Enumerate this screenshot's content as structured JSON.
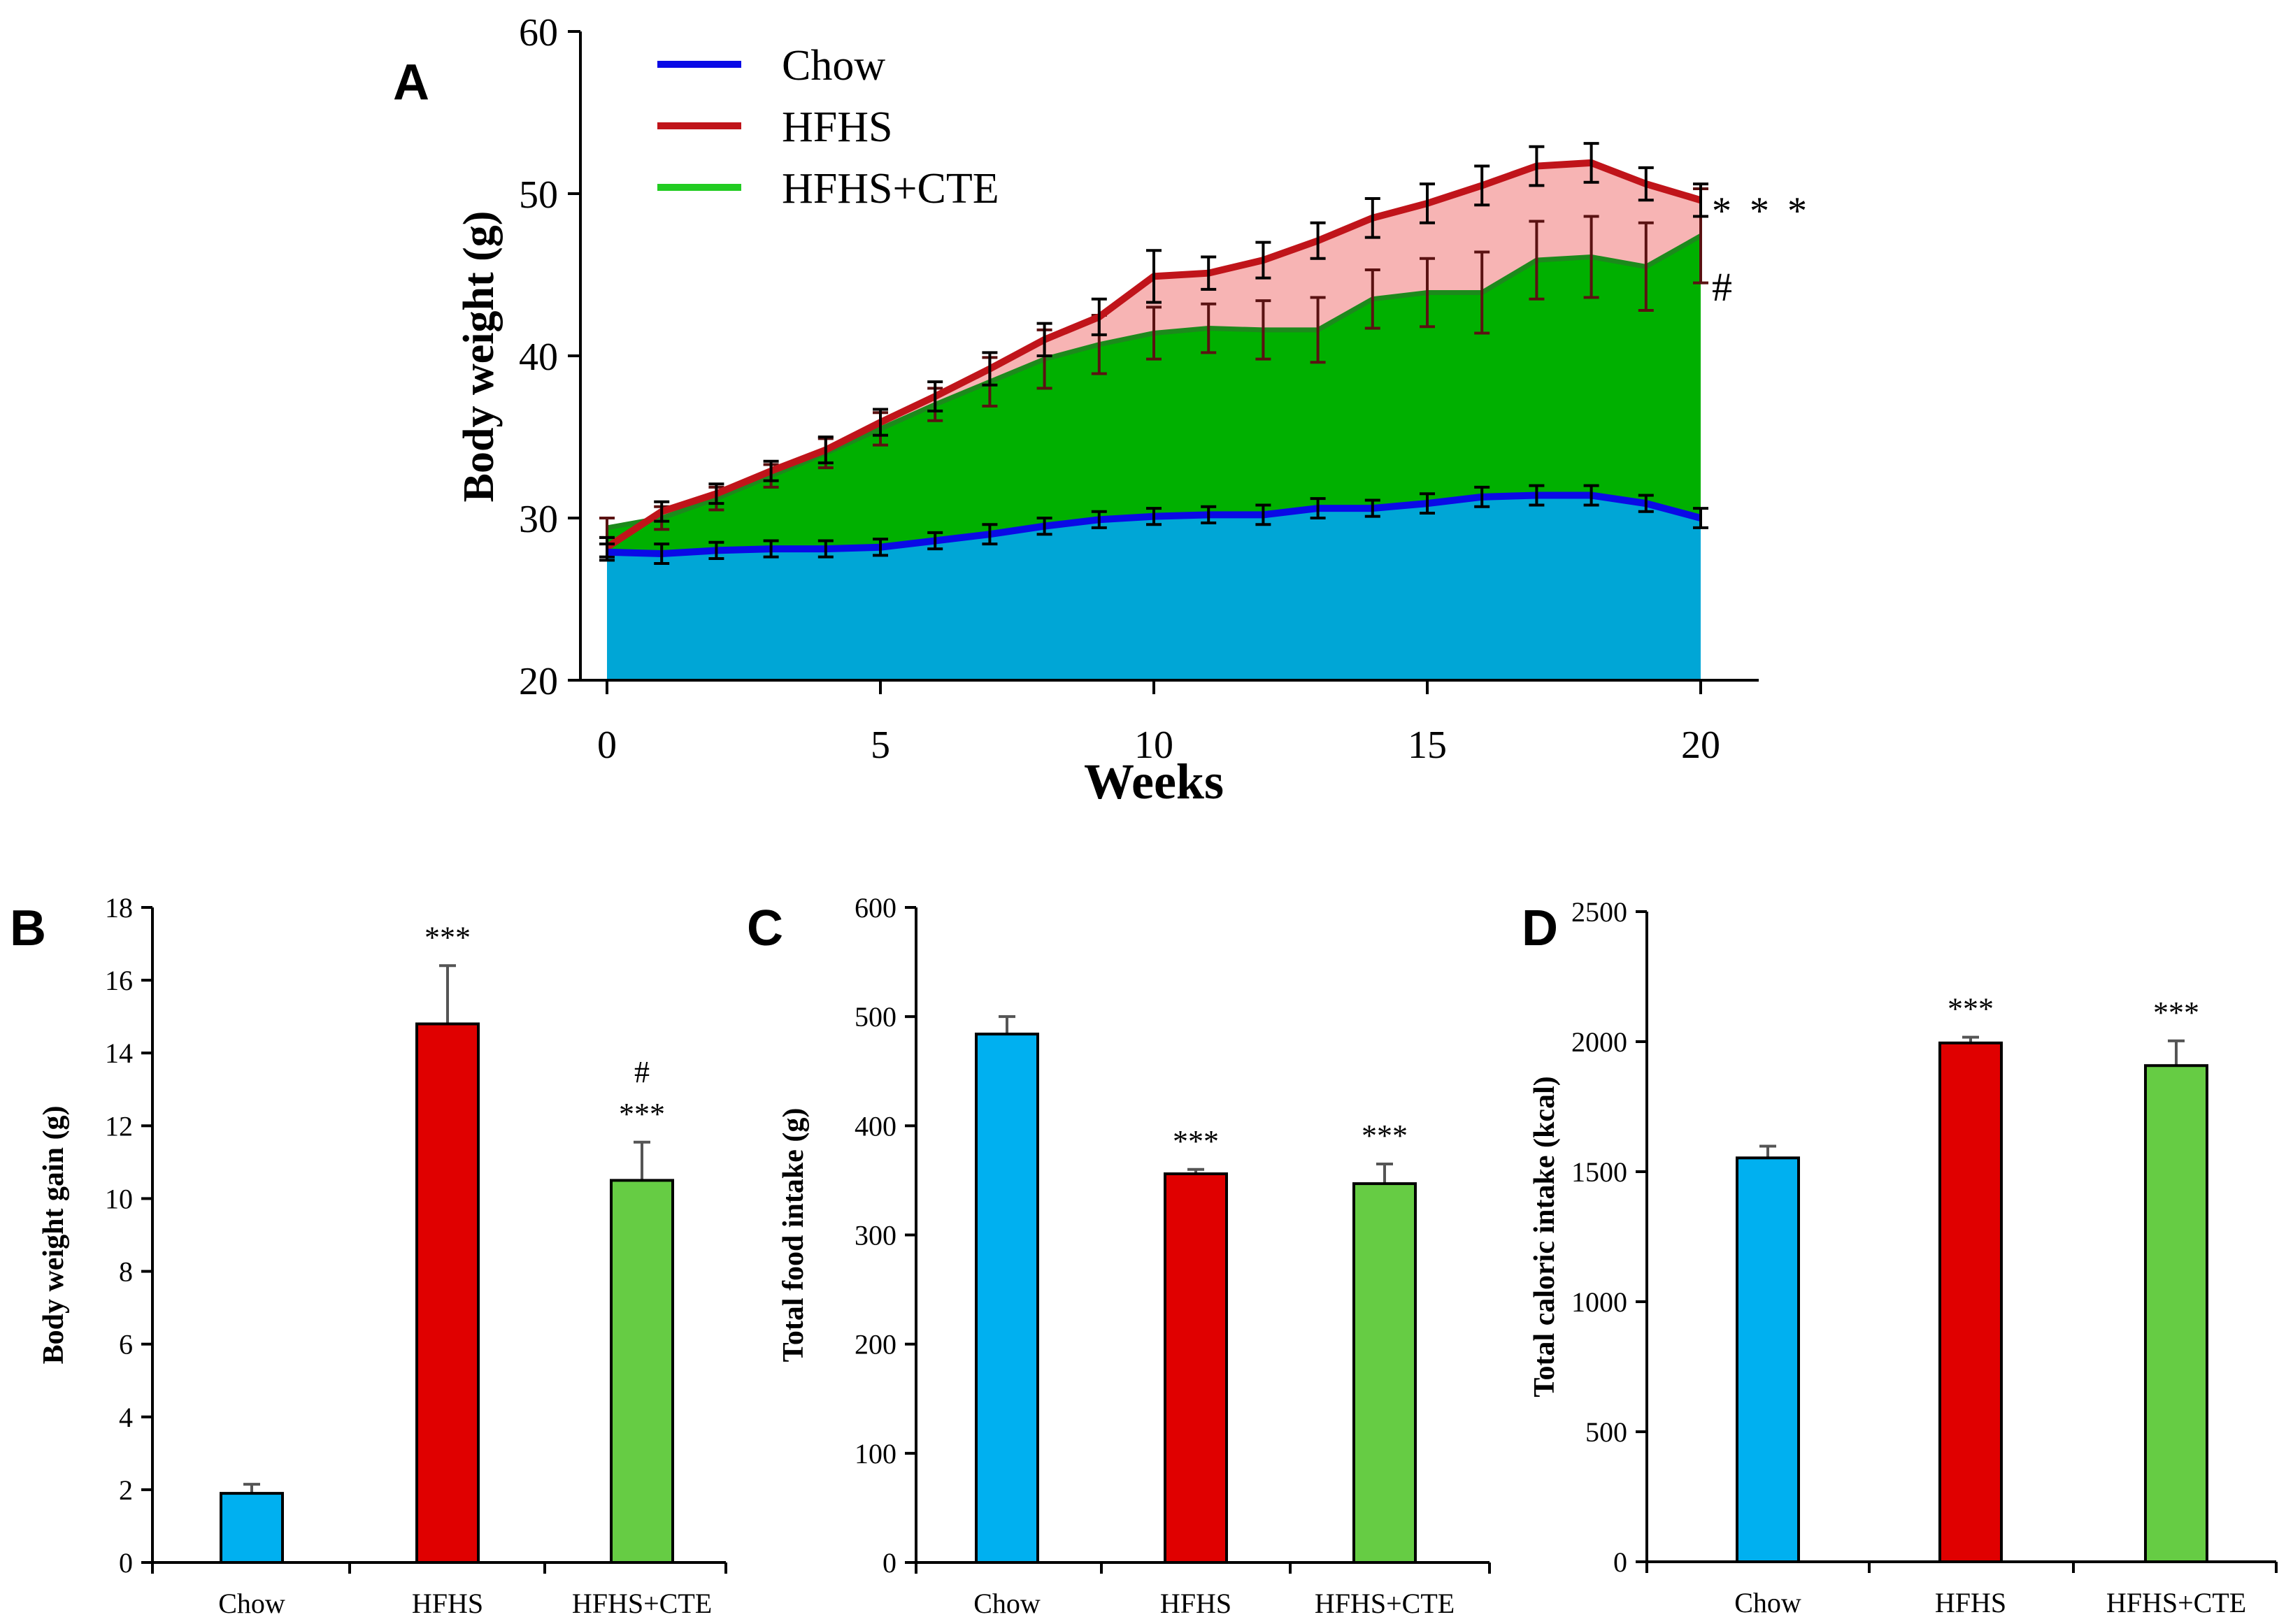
{
  "colors": {
    "chow_line": "#0a0ae6",
    "hfhs_line": "#c0141a",
    "cte_line": "#22cc22",
    "chow_area": "#00a6d6",
    "cte_area": "#00b000",
    "hfhs_area": "#f7b4b4",
    "chow_bar": "#00b0f0",
    "hfhs_bar": "#e00000",
    "cte_bar": "#66cc44"
  },
  "chart_data": [
    {
      "panel": "A",
      "type": "area",
      "xlabel": "Weeks",
      "ylabel": "Body weight  (g)",
      "xlim": [
        0,
        20
      ],
      "ylim": [
        20,
        60
      ],
      "xticks": [
        "0",
        "5",
        "10",
        "15",
        "20"
      ],
      "yticks": [
        "20",
        "30",
        "40",
        "50",
        "60"
      ],
      "legend": {
        "position": "top-left",
        "entries": [
          "Chow",
          "HFHS",
          "HFHS+CTE"
        ]
      },
      "x": [
        0,
        1,
        2,
        3,
        4,
        5,
        6,
        7,
        8,
        9,
        10,
        11,
        12,
        13,
        14,
        15,
        16,
        17,
        18,
        19,
        20
      ],
      "series": [
        {
          "name": "Chow",
          "values": [
            27.9,
            27.8,
            28.0,
            28.1,
            28.1,
            28.2,
            28.6,
            29.0,
            29.5,
            29.9,
            30.1,
            30.2,
            30.2,
            30.6,
            30.6,
            30.9,
            31.3,
            31.4,
            31.4,
            30.9,
            30.0
          ],
          "errors": [
            0.5,
            0.6,
            0.5,
            0.5,
            0.5,
            0.5,
            0.5,
            0.6,
            0.5,
            0.5,
            0.5,
            0.5,
            0.6,
            0.6,
            0.5,
            0.6,
            0.6,
            0.6,
            0.6,
            0.5,
            0.6
          ]
        },
        {
          "name": "HFHS",
          "values": [
            28.2,
            30.4,
            31.5,
            32.9,
            34.2,
            35.9,
            37.5,
            39.2,
            41.0,
            42.4,
            44.9,
            45.1,
            45.9,
            47.1,
            48.5,
            49.4,
            50.5,
            51.7,
            51.9,
            50.6,
            49.6
          ],
          "errors": [
            0.6,
            0.6,
            0.6,
            0.6,
            0.8,
            0.8,
            0.9,
            1.0,
            1.0,
            1.1,
            1.6,
            1.0,
            1.1,
            1.1,
            1.2,
            1.2,
            1.2,
            1.2,
            1.2,
            1.0,
            1.0
          ]
        },
        {
          "name": "HFHS+CTE",
          "values": [
            29.4,
            30.0,
            31.2,
            32.6,
            34.0,
            35.5,
            37.0,
            38.4,
            39.8,
            40.7,
            41.4,
            41.7,
            41.6,
            41.6,
            43.5,
            43.9,
            43.9,
            45.9,
            46.1,
            45.5,
            47.4
          ],
          "errors": [
            0.6,
            0.7,
            0.7,
            0.7,
            0.9,
            1.0,
            1.0,
            1.5,
            1.8,
            1.8,
            1.6,
            1.5,
            1.8,
            2.0,
            1.8,
            2.1,
            2.5,
            2.4,
            2.5,
            2.7,
            2.9
          ]
        }
      ],
      "annotations": [
        {
          "text": "* * *",
          "series": "HFHS"
        },
        {
          "text": "#",
          "series": "HFHS+CTE"
        }
      ]
    },
    {
      "panel": "B",
      "type": "bar",
      "ylabel": "Body weight gain  (g)",
      "ylim": [
        0,
        18
      ],
      "yticks": [
        "0",
        "2",
        "4",
        "6",
        "8",
        "10",
        "12",
        "14",
        "16",
        "18"
      ],
      "categories": [
        "Chow",
        "HFHS",
        "HFHS+CTE"
      ],
      "values": [
        1.9,
        14.8,
        10.5
      ],
      "errors": [
        0.25,
        1.6,
        1.05
      ],
      "labels": [
        [],
        [
          "***"
        ],
        [
          "#",
          "***"
        ]
      ]
    },
    {
      "panel": "C",
      "type": "bar",
      "ylabel": "Total food intake (g)",
      "ylim": [
        0,
        600
      ],
      "yticks": [
        "0",
        "100",
        "200",
        "300",
        "400",
        "500",
        "600"
      ],
      "categories": [
        "Chow",
        "HFHS",
        "HFHS+CTE"
      ],
      "values": [
        484,
        356,
        347
      ],
      "errors": [
        16,
        4,
        18
      ],
      "labels": [
        [],
        [
          "***"
        ],
        [
          "***"
        ]
      ]
    },
    {
      "panel": "D",
      "type": "bar",
      "ylabel": "Total caloric intake (kcal)",
      "ylim": [
        0,
        2500
      ],
      "yticks": [
        "0",
        "500",
        "1000",
        "1500",
        "2000",
        "2500"
      ],
      "categories": [
        "Chow",
        "HFHS",
        "HFHS+CTE"
      ],
      "values": [
        1553,
        1995,
        1908
      ],
      "errors": [
        45,
        22,
        95
      ],
      "labels": [
        [],
        [
          "***"
        ],
        [
          "***"
        ]
      ]
    }
  ]
}
